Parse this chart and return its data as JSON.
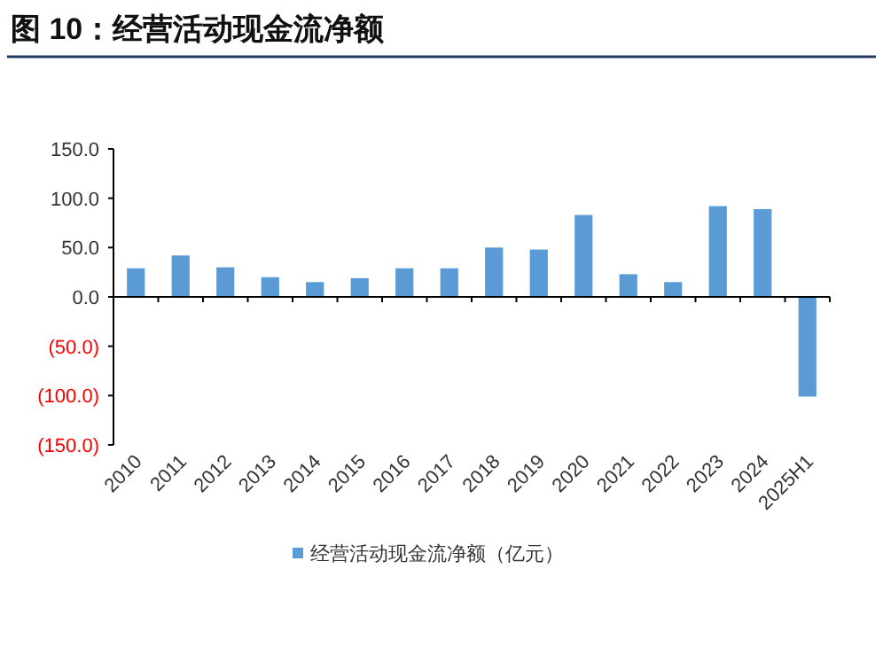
{
  "chart_data": {
    "type": "bar",
    "title": "图 10：经营活动现金流净额",
    "categories": [
      "2010",
      "2011",
      "2012",
      "2013",
      "2014",
      "2015",
      "2016",
      "2017",
      "2018",
      "2019",
      "2020",
      "2021",
      "2022",
      "2023",
      "2024",
      "2025H1"
    ],
    "series": [
      {
        "name": "经营活动现金流净额（亿元）",
        "color": "#5b9bd5",
        "values": [
          29,
          42,
          30,
          20,
          15,
          19,
          29,
          29,
          50,
          48,
          83,
          23,
          15,
          92,
          89,
          -101
        ]
      }
    ],
    "ylim": [
      -150,
      150
    ],
    "yticks": [
      {
        "value": 150,
        "label": "150.0"
      },
      {
        "value": 100,
        "label": "100.0"
      },
      {
        "value": 50,
        "label": "50.0"
      },
      {
        "value": 0,
        "label": "0.0"
      },
      {
        "value": -50,
        "label": "(50.0)"
      },
      {
        "value": -100,
        "label": "(100.0)"
      },
      {
        "value": -150,
        "label": "(150.0)"
      }
    ],
    "legend": "bottom"
  }
}
